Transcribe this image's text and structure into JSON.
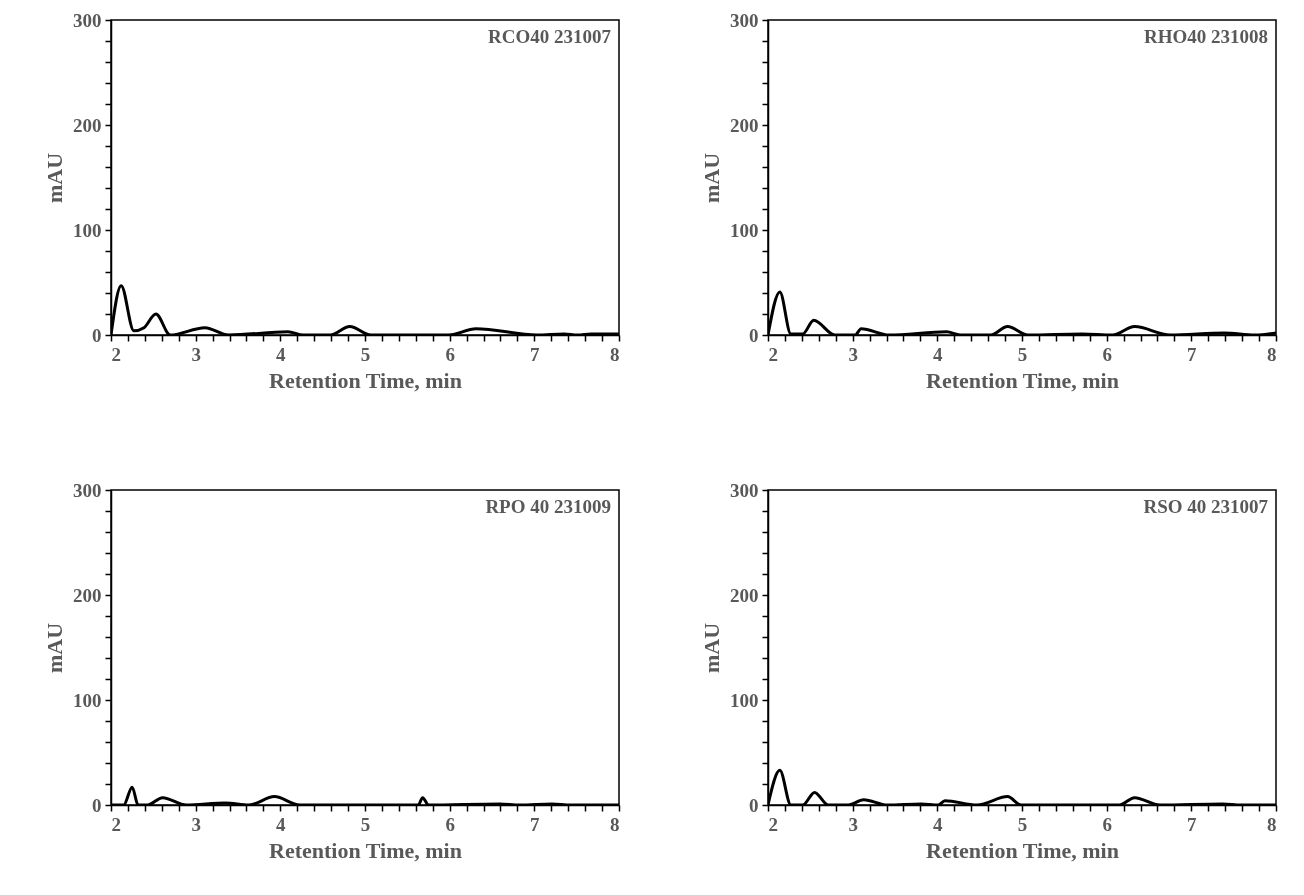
{
  "chart_data": [
    {
      "type": "line",
      "xlabel": "Retention Time, min",
      "ylabel": "mAU",
      "annotations": [
        "RCO40 231007"
      ],
      "xlim": [
        2,
        8
      ],
      "ylim": [
        0,
        300
      ],
      "xticks": [
        2,
        {
          "value": 2.2,
          "label": null
        },
        {
          "value": 2.4,
          "label": null
        },
        {
          "value": 2.6,
          "label": null
        },
        {
          "value": 2.8,
          "label": null
        },
        3,
        {
          "value": 3.2,
          "label": null
        },
        {
          "value": 3.4,
          "label": null
        },
        {
          "value": 3.6,
          "label": null
        },
        {
          "value": 3.8,
          "label": null
        },
        4,
        {
          "value": 4.2,
          "label": null
        },
        {
          "value": 4.4,
          "label": null
        },
        {
          "value": 4.6,
          "label": null
        },
        {
          "value": 4.8,
          "label": null
        },
        5,
        {
          "value": 5.2,
          "label": null
        },
        {
          "value": 5.4,
          "label": null
        },
        {
          "value": 5.6,
          "label": null
        },
        {
          "value": 5.8,
          "label": null
        },
        6,
        {
          "value": 6.2,
          "label": null
        },
        {
          "value": 6.4,
          "label": null
        },
        {
          "value": 6.6,
          "label": null
        },
        {
          "value": 6.8,
          "label": null
        },
        7,
        {
          "value": 7.2,
          "label": null
        },
        {
          "value": 7.4,
          "label": null
        },
        {
          "value": 7.6,
          "label": null
        },
        {
          "value": 7.8,
          "label": null
        },
        8
      ],
      "yticks": [
        0,
        {
          "value": 20,
          "label": null
        },
        {
          "value": 40,
          "label": null
        },
        {
          "value": 60,
          "label": null
        },
        {
          "value": 80,
          "label": null
        },
        100,
        {
          "value": 120,
          "label": null
        },
        {
          "value": 140,
          "label": null
        },
        {
          "value": 160,
          "label": null
        },
        {
          "value": 180,
          "label": null
        },
        200,
        {
          "value": 220,
          "label": null
        },
        {
          "value": 240,
          "label": null
        },
        {
          "value": 260,
          "label": null
        },
        {
          "value": 280,
          "label": null
        },
        300
      ],
      "series": [
        {
          "color": "#000000",
          "x": [
            2,
            2.12,
            2.27,
            2.39,
            2.53,
            2.7,
            3.11,
            3.39,
            4.09,
            4.27,
            4.59,
            4.82,
            5.07,
            5.99,
            6.31,
            7.03,
            7.35,
            7.51,
            7.67,
            8
          ],
          "values": [
            0,
            47,
            4,
            7,
            20,
            0,
            7,
            0,
            3,
            0,
            0,
            8,
            0,
            0,
            6,
            0,
            1,
            0,
            1,
            1
          ]
        }
      ]
    },
    {
      "type": "line",
      "xlabel": "Retention Time, min",
      "ylabel": "mAU",
      "annotations": [
        "RHO40 231008"
      ],
      "xlim": [
        2,
        8
      ],
      "ylim": [
        0,
        300
      ],
      "xticks": [
        2,
        {
          "value": 2.2,
          "label": null
        },
        {
          "value": 2.4,
          "label": null
        },
        {
          "value": 2.6,
          "label": null
        },
        {
          "value": 2.8,
          "label": null
        },
        3,
        {
          "value": 3.2,
          "label": null
        },
        {
          "value": 3.4,
          "label": null
        },
        {
          "value": 3.6,
          "label": null
        },
        {
          "value": 3.8,
          "label": null
        },
        4,
        {
          "value": 4.2,
          "label": null
        },
        {
          "value": 4.4,
          "label": null
        },
        {
          "value": 4.6,
          "label": null
        },
        {
          "value": 4.8,
          "label": null
        },
        5,
        {
          "value": 5.2,
          "label": null
        },
        {
          "value": 5.4,
          "label": null
        },
        {
          "value": 5.6,
          "label": null
        },
        {
          "value": 5.8,
          "label": null
        },
        6,
        {
          "value": 6.2,
          "label": null
        },
        {
          "value": 6.4,
          "label": null
        },
        {
          "value": 6.6,
          "label": null
        },
        {
          "value": 6.8,
          "label": null
        },
        7,
        {
          "value": 7.2,
          "label": null
        },
        {
          "value": 7.4,
          "label": null
        },
        {
          "value": 7.6,
          "label": null
        },
        {
          "value": 7.8,
          "label": null
        },
        8
      ],
      "yticks": [
        0,
        {
          "value": 20,
          "label": null
        },
        {
          "value": 40,
          "label": null
        },
        {
          "value": 60,
          "label": null
        },
        {
          "value": 80,
          "label": null
        },
        100,
        {
          "value": 120,
          "label": null
        },
        {
          "value": 140,
          "label": null
        },
        {
          "value": 160,
          "label": null
        },
        {
          "value": 180,
          "label": null
        },
        200,
        {
          "value": 220,
          "label": null
        },
        {
          "value": 240,
          "label": null
        },
        {
          "value": 260,
          "label": null
        },
        {
          "value": 280,
          "label": null
        },
        300
      ],
      "series": [
        {
          "color": "#000000",
          "x": [
            2,
            2.14,
            2.27,
            2.41,
            2.54,
            2.79,
            3.03,
            3.1,
            3.43,
            4.11,
            4.27,
            4.63,
            4.83,
            5.07,
            5.71,
            6.07,
            6.33,
            6.75,
            7.39,
            7.75,
            8
          ],
          "values": [
            0,
            41,
            1,
            1,
            14,
            0,
            0,
            6,
            0,
            3,
            0,
            0,
            8,
            0,
            1,
            0,
            8,
            0,
            2,
            0,
            2
          ]
        }
      ]
    },
    {
      "type": "line",
      "xlabel": "Retention Time, min",
      "ylabel": "mAU",
      "annotations": [
        "RPO 40 231009"
      ],
      "xlim": [
        2,
        8
      ],
      "ylim": [
        0,
        300
      ],
      "xticks": [
        2,
        {
          "value": 2.2,
          "label": null
        },
        {
          "value": 2.4,
          "label": null
        },
        {
          "value": 2.6,
          "label": null
        },
        {
          "value": 2.8,
          "label": null
        },
        3,
        {
          "value": 3.2,
          "label": null
        },
        {
          "value": 3.4,
          "label": null
        },
        {
          "value": 3.6,
          "label": null
        },
        {
          "value": 3.8,
          "label": null
        },
        4,
        {
          "value": 4.2,
          "label": null
        },
        {
          "value": 4.4,
          "label": null
        },
        {
          "value": 4.6,
          "label": null
        },
        {
          "value": 4.8,
          "label": null
        },
        5,
        {
          "value": 5.2,
          "label": null
        },
        {
          "value": 5.4,
          "label": null
        },
        {
          "value": 5.6,
          "label": null
        },
        {
          "value": 5.8,
          "label": null
        },
        6,
        {
          "value": 6.2,
          "label": null
        },
        {
          "value": 6.4,
          "label": null
        },
        {
          "value": 6.6,
          "label": null
        },
        {
          "value": 6.8,
          "label": null
        },
        7,
        {
          "value": 7.2,
          "label": null
        },
        {
          "value": 7.4,
          "label": null
        },
        {
          "value": 7.6,
          "label": null
        },
        {
          "value": 7.8,
          "label": null
        },
        8
      ],
      "yticks": [
        0,
        {
          "value": 20,
          "label": null
        },
        {
          "value": 40,
          "label": null
        },
        {
          "value": 60,
          "label": null
        },
        {
          "value": 80,
          "label": null
        },
        100,
        {
          "value": 120,
          "label": null
        },
        {
          "value": 140,
          "label": null
        },
        {
          "value": 160,
          "label": null
        },
        {
          "value": 180,
          "label": null
        },
        200,
        {
          "value": 220,
          "label": null
        },
        {
          "value": 240,
          "label": null
        },
        {
          "value": 260,
          "label": null
        },
        {
          "value": 280,
          "label": null
        },
        300
      ],
      "series": [
        {
          "color": "#000000",
          "x": [
            2,
            2.15,
            2.25,
            2.32,
            2.43,
            2.61,
            2.89,
            3.35,
            3.63,
            3.93,
            4.23,
            4.67,
            5.63,
            5.68,
            5.75,
            6.59,
            6.83,
            7.21,
            7.43,
            8
          ],
          "values": [
            0,
            0,
            17,
            0,
            0,
            7,
            0,
            2,
            0,
            8,
            0,
            0,
            0,
            7,
            0,
            1,
            0,
            1,
            0,
            0
          ]
        }
      ]
    },
    {
      "type": "line",
      "xlabel": "Retention Time, min",
      "ylabel": "mAU",
      "annotations": [
        "RSO 40 231007"
      ],
      "xlim": [
        2,
        8
      ],
      "ylim": [
        0,
        300
      ],
      "xticks": [
        2,
        {
          "value": 2.2,
          "label": null
        },
        {
          "value": 2.4,
          "label": null
        },
        {
          "value": 2.6,
          "label": null
        },
        {
          "value": 2.8,
          "label": null
        },
        3,
        {
          "value": 3.2,
          "label": null
        },
        {
          "value": 3.4,
          "label": null
        },
        {
          "value": 3.6,
          "label": null
        },
        {
          "value": 3.8,
          "label": null
        },
        4,
        {
          "value": 4.2,
          "label": null
        },
        {
          "value": 4.4,
          "label": null
        },
        {
          "value": 4.6,
          "label": null
        },
        {
          "value": 4.8,
          "label": null
        },
        5,
        {
          "value": 5.2,
          "label": null
        },
        {
          "value": 5.4,
          "label": null
        },
        {
          "value": 5.6,
          "label": null
        },
        {
          "value": 5.8,
          "label": null
        },
        6,
        {
          "value": 6.2,
          "label": null
        },
        {
          "value": 6.4,
          "label": null
        },
        {
          "value": 6.6,
          "label": null
        },
        {
          "value": 6.8,
          "label": null
        },
        7,
        {
          "value": 7.2,
          "label": null
        },
        {
          "value": 7.4,
          "label": null
        },
        {
          "value": 7.6,
          "label": null
        },
        {
          "value": 7.8,
          "label": null
        },
        8
      ],
      "yticks": [
        0,
        {
          "value": 20,
          "label": null
        },
        {
          "value": 40,
          "label": null
        },
        {
          "value": 60,
          "label": null
        },
        {
          "value": 80,
          "label": null
        },
        100,
        {
          "value": 120,
          "label": null
        },
        {
          "value": 140,
          "label": null
        },
        {
          "value": 160,
          "label": null
        },
        {
          "value": 180,
          "label": null
        },
        200,
        {
          "value": 220,
          "label": null
        },
        {
          "value": 240,
          "label": null
        },
        {
          "value": 260,
          "label": null
        },
        {
          "value": 280,
          "label": null
        },
        300
      ],
      "series": [
        {
          "color": "#000000",
          "x": [
            2,
            2.14,
            2.27,
            2.41,
            2.55,
            2.71,
            2.95,
            3.13,
            3.41,
            3.81,
            4.01,
            4.09,
            4.47,
            4.83,
            4.99,
            6.15,
            6.33,
            6.63,
            7.37,
            7.59,
            8
          ],
          "values": [
            0,
            33,
            0,
            0,
            12,
            0,
            0,
            5,
            0,
            1,
            0,
            4,
            0,
            8,
            0,
            0,
            7,
            0,
            1,
            0,
            0
          ]
        }
      ]
    }
  ]
}
